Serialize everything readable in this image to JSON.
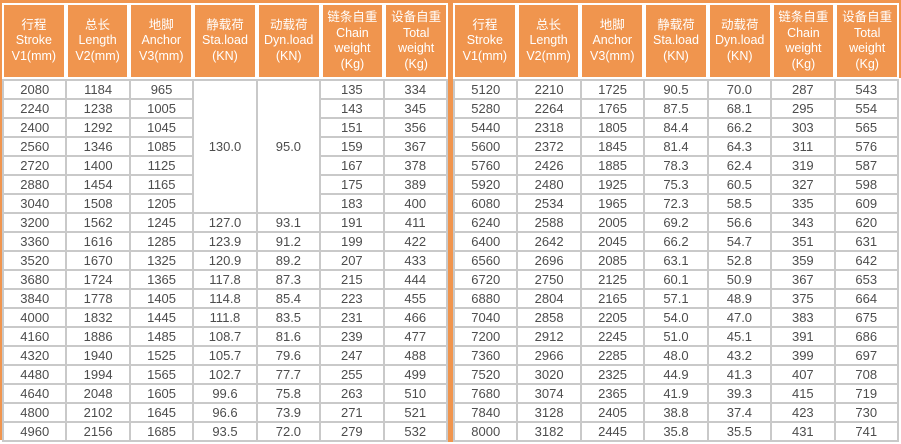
{
  "colors": {
    "accent": "#F0954E",
    "header_bg": "#F0954E",
    "header_text": "#FFFFFF",
    "grid_border": "#C9C9C9",
    "cell_text": "#4D4D4D"
  },
  "columns": [
    {
      "key": "stroke",
      "lines": [
        "行程",
        "Stroke",
        "V1(mm)"
      ]
    },
    {
      "key": "length",
      "lines": [
        "总长",
        "Length",
        "V2(mm)"
      ]
    },
    {
      "key": "anchor",
      "lines": [
        "地脚",
        "Anchor",
        "V3(mm)"
      ]
    },
    {
      "key": "sta-load",
      "lines": [
        "静载荷",
        "Sta.load",
        "(KN)"
      ]
    },
    {
      "key": "dyn-load",
      "lines": [
        "动载荷",
        "Dyn.load",
        "(KN)"
      ]
    },
    {
      "key": "chain-weight",
      "lines": [
        "链条自重",
        "Chain",
        "weight",
        "(Kg)"
      ]
    },
    {
      "key": "total-weight",
      "lines": [
        "设备自重",
        "Total",
        "weight",
        "(Kg)"
      ]
    }
  ],
  "left_table": {
    "rows": [
      [
        "2080",
        "1184",
        "965",
        {
          "value": "130.0",
          "rowspan": 7
        },
        {
          "value": "95.0",
          "rowspan": 7
        },
        "135",
        "334"
      ],
      [
        "2240",
        "1238",
        "1005",
        null,
        null,
        "143",
        "345"
      ],
      [
        "2400",
        "1292",
        "1045",
        null,
        null,
        "151",
        "356"
      ],
      [
        "2560",
        "1346",
        "1085",
        null,
        null,
        "159",
        "367"
      ],
      [
        "2720",
        "1400",
        "1125",
        null,
        null,
        "167",
        "378"
      ],
      [
        "2880",
        "1454",
        "1165",
        null,
        null,
        "175",
        "389"
      ],
      [
        "3040",
        "1508",
        "1205",
        null,
        null,
        "183",
        "400"
      ],
      [
        "3200",
        "1562",
        "1245",
        "127.0",
        "93.1",
        "191",
        "411"
      ],
      [
        "3360",
        "1616",
        "1285",
        "123.9",
        "91.2",
        "199",
        "422"
      ],
      [
        "3520",
        "1670",
        "1325",
        "120.9",
        "89.2",
        "207",
        "433"
      ],
      [
        "3680",
        "1724",
        "1365",
        "117.8",
        "87.3",
        "215",
        "444"
      ],
      [
        "3840",
        "1778",
        "1405",
        "114.8",
        "85.4",
        "223",
        "455"
      ],
      [
        "4000",
        "1832",
        "1445",
        "111.8",
        "83.5",
        "231",
        "466"
      ],
      [
        "4160",
        "1886",
        "1485",
        "108.7",
        "81.6",
        "239",
        "477"
      ],
      [
        "4320",
        "1940",
        "1525",
        "105.7",
        "79.6",
        "247",
        "488"
      ],
      [
        "4480",
        "1994",
        "1565",
        "102.7",
        "77.7",
        "255",
        "499"
      ],
      [
        "4640",
        "2048",
        "1605",
        "99.6",
        "75.8",
        "263",
        "510"
      ],
      [
        "4800",
        "2102",
        "1645",
        "96.6",
        "73.9",
        "271",
        "521"
      ],
      [
        "4960",
        "2156",
        "1685",
        "93.5",
        "72.0",
        "279",
        "532"
      ]
    ]
  },
  "right_table": {
    "rows": [
      [
        "5120",
        "2210",
        "1725",
        "90.5",
        "70.0",
        "287",
        "543"
      ],
      [
        "5280",
        "2264",
        "1765",
        "87.5",
        "68.1",
        "295",
        "554"
      ],
      [
        "5440",
        "2318",
        "1805",
        "84.4",
        "66.2",
        "303",
        "565"
      ],
      [
        "5600",
        "2372",
        "1845",
        "81.4",
        "64.3",
        "311",
        "576"
      ],
      [
        "5760",
        "2426",
        "1885",
        "78.3",
        "62.4",
        "319",
        "587"
      ],
      [
        "5920",
        "2480",
        "1925",
        "75.3",
        "60.5",
        "327",
        "598"
      ],
      [
        "6080",
        "2534",
        "1965",
        "72.3",
        "58.5",
        "335",
        "609"
      ],
      [
        "6240",
        "2588",
        "2005",
        "69.2",
        "56.6",
        "343",
        "620"
      ],
      [
        "6400",
        "2642",
        "2045",
        "66.2",
        "54.7",
        "351",
        "631"
      ],
      [
        "6560",
        "2696",
        "2085",
        "63.1",
        "52.8",
        "359",
        "642"
      ],
      [
        "6720",
        "2750",
        "2125",
        "60.1",
        "50.9",
        "367",
        "653"
      ],
      [
        "6880",
        "2804",
        "2165",
        "57.1",
        "48.9",
        "375",
        "664"
      ],
      [
        "7040",
        "2858",
        "2205",
        "54.0",
        "47.0",
        "383",
        "675"
      ],
      [
        "7200",
        "2912",
        "2245",
        "51.0",
        "45.1",
        "391",
        "686"
      ],
      [
        "7360",
        "2966",
        "2285",
        "48.0",
        "43.2",
        "399",
        "697"
      ],
      [
        "7520",
        "3020",
        "2325",
        "44.9",
        "41.3",
        "407",
        "708"
      ],
      [
        "7680",
        "3074",
        "2365",
        "41.9",
        "39.3",
        "415",
        "719"
      ],
      [
        "7840",
        "3128",
        "2405",
        "38.8",
        "37.4",
        "423",
        "730"
      ],
      [
        "8000",
        "3182",
        "2445",
        "35.8",
        "35.5",
        "431",
        "741"
      ]
    ]
  }
}
